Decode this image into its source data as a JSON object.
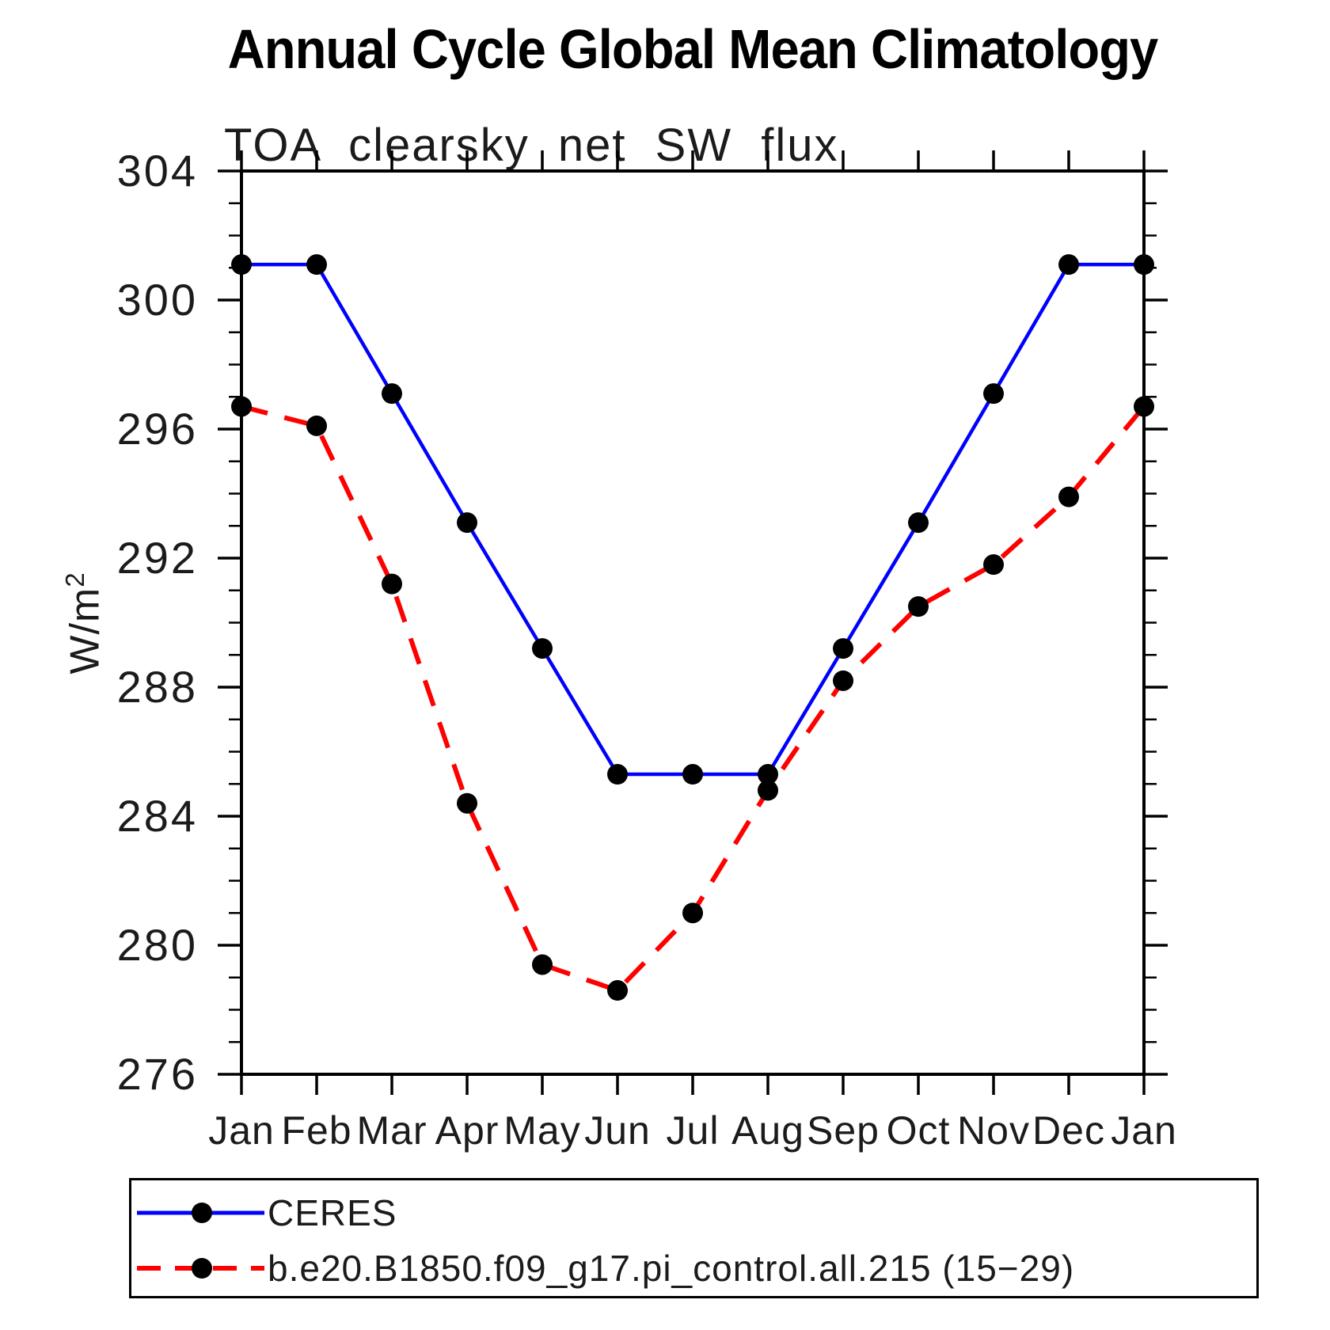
{
  "title": "Annual Cycle Global Mean Climatology",
  "subtitle": "TOA clearsky net SW flux",
  "y_axis_title": {
    "base": "W/m",
    "exponent": "2"
  },
  "chart_data": {
    "type": "line",
    "x_categories": [
      "Jan",
      "Feb",
      "Mar",
      "Apr",
      "May",
      "Jun",
      "Jul",
      "Aug",
      "Sep",
      "Oct",
      "Nov",
      "Dec",
      "Jan"
    ],
    "ylim": [
      276,
      304
    ],
    "ytick_major": [
      276,
      280,
      284,
      288,
      292,
      296,
      300,
      304
    ],
    "ytick_minor_step": 1,
    "grid": false,
    "legend_position": "bottom",
    "axis_color": "#000000",
    "marker_color": "#000000",
    "series": [
      {
        "name": "CERES",
        "color": "#0000ff",
        "style": "solid",
        "marker": "filled-circle",
        "values": [
          301.1,
          301.1,
          297.1,
          293.1,
          289.2,
          285.3,
          285.3,
          285.3,
          289.2,
          293.1,
          297.1,
          301.1,
          301.1
        ]
      },
      {
        "name": "b.e20.B1850.f09_g17.pi_control.all.215 (15−29)",
        "color": "#ff0000",
        "style": "dashed",
        "marker": "filled-circle",
        "values": [
          296.7,
          296.1,
          291.2,
          284.4,
          279.4,
          278.6,
          281.0,
          284.8,
          288.2,
          290.5,
          291.8,
          293.9,
          296.7
        ]
      }
    ]
  }
}
